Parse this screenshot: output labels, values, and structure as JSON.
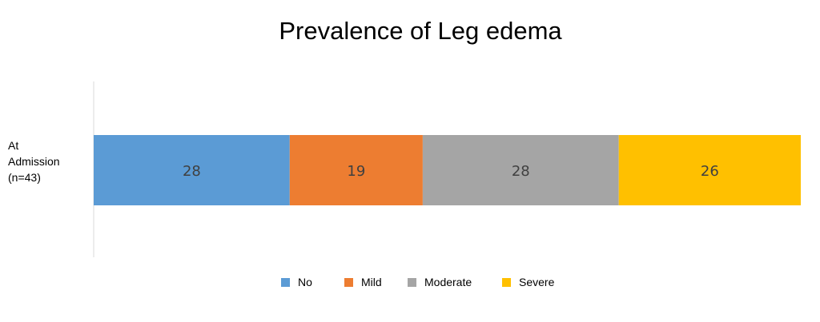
{
  "chart_data": {
    "type": "bar",
    "orientation": "horizontal",
    "stacked": true,
    "title": "Prevalence of Leg edema",
    "categories": [
      "At Admission (n=43)"
    ],
    "category_lines": [
      "At",
      "Admission",
      "(n=43)"
    ],
    "series": [
      {
        "name": "No",
        "values": [
          28
        ],
        "color": "#5b9bd5"
      },
      {
        "name": "Mild",
        "values": [
          19
        ],
        "color": "#ed7d31"
      },
      {
        "name": "Moderate",
        "values": [
          28
        ],
        "color": "#a5a5a5"
      },
      {
        "name": "Severe",
        "values": [
          26
        ],
        "color": "#ffc000"
      }
    ],
    "xlim": [
      0,
      101
    ],
    "grid": false,
    "legend_position": "bottom",
    "data_label_color": "#404040"
  }
}
